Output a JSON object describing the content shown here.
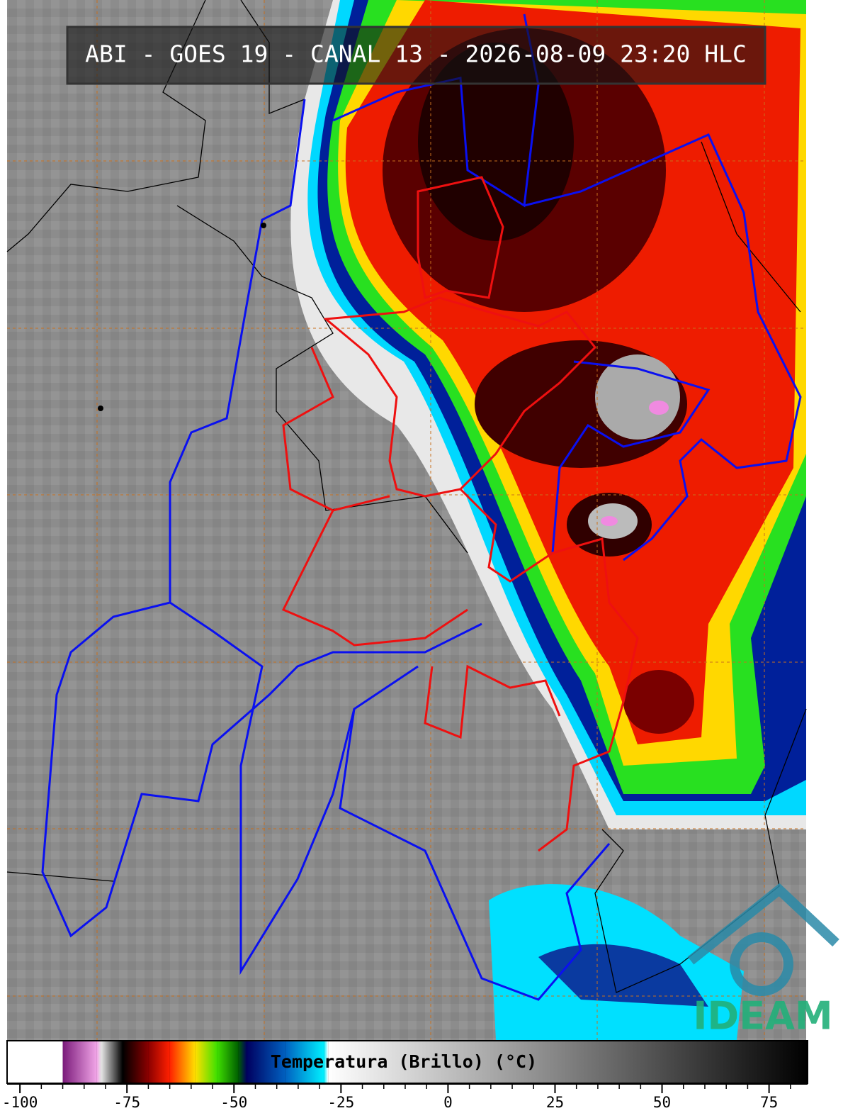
{
  "title": "ABI - GOES 19 - CANAL 13 - 2026-08-09 23:20 HLC",
  "colorbar": {
    "label": "Temperatura (Brillo) (°C)",
    "lim": [
      -103,
      84
    ],
    "ticks": [
      -100,
      -75,
      -50,
      -25,
      0,
      25,
      50,
      75
    ],
    "colormap": [
      {
        "value": -103,
        "color": "#ffffff"
      },
      {
        "value": -90,
        "color": "#ffffff"
      },
      {
        "value": -90,
        "color": "#7a1a7a"
      },
      {
        "value": -82,
        "color": "#f2a6e8"
      },
      {
        "value": -81,
        "color": "#e6e6e6"
      },
      {
        "value": -77,
        "color": "#303030"
      },
      {
        "value": -76,
        "color": "#000000"
      },
      {
        "value": -70,
        "color": "#8b0000"
      },
      {
        "value": -65,
        "color": "#ff2000"
      },
      {
        "value": -59,
        "color": "#ffe000"
      },
      {
        "value": -54,
        "color": "#40e000"
      },
      {
        "value": -49,
        "color": "#006000"
      },
      {
        "value": -47,
        "color": "#000060"
      },
      {
        "value": -38,
        "color": "#0060c0"
      },
      {
        "value": -29,
        "color": "#00f0ff"
      },
      {
        "value": -28,
        "color": "#ffffff"
      },
      {
        "value": 84,
        "color": "#000000"
      }
    ]
  },
  "logo": "IDEAM"
}
